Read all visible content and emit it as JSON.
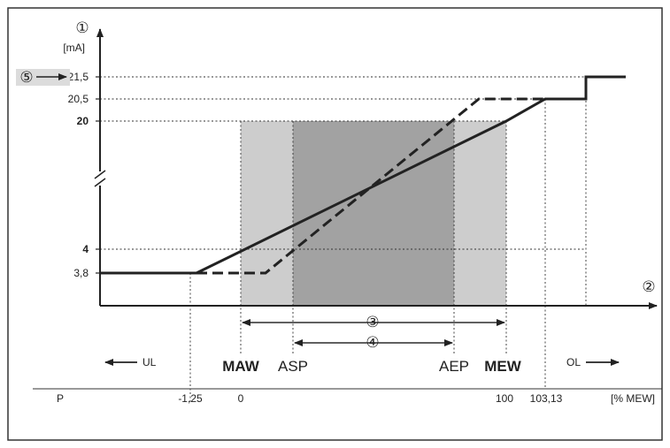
{
  "diagram": {
    "y_unit": "[mA]",
    "y_ticks": [
      {
        "value": "21,5",
        "bold": false,
        "id": "y-tick-21-5"
      },
      {
        "value": "20,5",
        "bold": false,
        "id": "y-tick-20-5"
      },
      {
        "value": "20",
        "bold": true,
        "id": "y-tick-20"
      },
      {
        "value": "4",
        "bold": true,
        "id": "y-tick-4"
      },
      {
        "value": "3,8",
        "bold": false,
        "id": "y-tick-3-8"
      }
    ],
    "callouts": {
      "y_axis": "①",
      "x_axis": "②",
      "full_range": "③",
      "scaled_range": "④",
      "output_max": "⑤"
    },
    "markers": {
      "ul": "UL",
      "ol": "OL",
      "maw": "MAW",
      "asp": "ASP",
      "aep": "AEP",
      "mew": "MEW"
    },
    "scale_row": {
      "label": "P",
      "values": [
        "-1,25",
        "0",
        "100",
        "103,13"
      ],
      "unit": "[% MEW]"
    },
    "colors": {
      "light_band": "#cdcdcd",
      "dark_band": "#a2a2a2",
      "line": "#222222",
      "callout_box": "#dcdcdc"
    }
  }
}
